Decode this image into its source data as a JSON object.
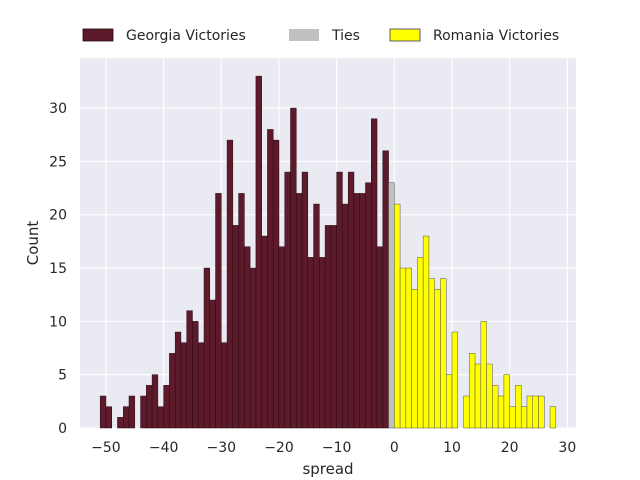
{
  "chart_data": {
    "type": "bar",
    "xlabel": "spread",
    "ylabel": "Count",
    "xlim": [
      -54.5,
      31.5
    ],
    "ylim": [
      0,
      34.7
    ],
    "xticks": [
      -50,
      -40,
      -30,
      -20,
      -10,
      0,
      10,
      20,
      30
    ],
    "yticks": [
      0,
      5,
      10,
      15,
      20,
      25,
      30
    ],
    "xtick_labels": [
      "−50",
      "−40",
      "−30",
      "−20",
      "−10",
      "0",
      "10",
      "20",
      "30"
    ],
    "ytick_labels": [
      "0",
      "5",
      "10",
      "15",
      "20",
      "25",
      "30"
    ],
    "legend_position": "top",
    "grid": true,
    "bin_width": 1,
    "series": [
      {
        "name": "Georgia Victories",
        "color": "#5c1a2b",
        "bins": [
          [
            -51,
            3
          ],
          [
            -50,
            2
          ],
          [
            -49,
            0
          ],
          [
            -48,
            1
          ],
          [
            -47,
            2
          ],
          [
            -46,
            3
          ],
          [
            -45,
            0
          ],
          [
            -44,
            3
          ],
          [
            -43,
            4
          ],
          [
            -42,
            5
          ],
          [
            -41,
            2
          ],
          [
            -40,
            4
          ],
          [
            -39,
            7
          ],
          [
            -38,
            9
          ],
          [
            -37,
            8
          ],
          [
            -36,
            11
          ],
          [
            -35,
            10
          ],
          [
            -34,
            8
          ],
          [
            -33,
            15
          ],
          [
            -32,
            12
          ],
          [
            -31,
            22
          ],
          [
            -30,
            8
          ],
          [
            -29,
            27
          ],
          [
            -28,
            19
          ],
          [
            -27,
            22
          ],
          [
            -26,
            17
          ],
          [
            -25,
            15
          ],
          [
            -24,
            33
          ],
          [
            -23,
            18
          ],
          [
            -22,
            28
          ],
          [
            -21,
            27
          ],
          [
            -20,
            17
          ],
          [
            -19,
            24
          ],
          [
            -18,
            30
          ],
          [
            -17,
            22
          ],
          [
            -16,
            24
          ],
          [
            -15,
            16
          ],
          [
            -14,
            21
          ],
          [
            -13,
            16
          ],
          [
            -12,
            19
          ],
          [
            -11,
            19
          ],
          [
            -10,
            24
          ],
          [
            -9,
            21
          ],
          [
            -8,
            24
          ],
          [
            -7,
            22
          ],
          [
            -6,
            22
          ],
          [
            -5,
            23
          ],
          [
            -4,
            29
          ],
          [
            -3,
            17
          ],
          [
            -2,
            26
          ]
        ]
      },
      {
        "name": "Ties",
        "color": "#c0c0c0",
        "bins": [
          [
            -1,
            23
          ]
        ]
      },
      {
        "name": "Romania Victories",
        "color": "#ffff00",
        "bins": [
          [
            0,
            21
          ],
          [
            1,
            15
          ],
          [
            2,
            15
          ],
          [
            3,
            13
          ],
          [
            4,
            16
          ],
          [
            5,
            18
          ],
          [
            6,
            14
          ],
          [
            7,
            13
          ],
          [
            8,
            14
          ],
          [
            9,
            5
          ],
          [
            10,
            9
          ],
          [
            11,
            0
          ],
          [
            12,
            3
          ],
          [
            13,
            7
          ],
          [
            14,
            6
          ],
          [
            15,
            10
          ],
          [
            16,
            6
          ],
          [
            17,
            4
          ],
          [
            18,
            3
          ],
          [
            19,
            5
          ],
          [
            20,
            2
          ],
          [
            21,
            4
          ],
          [
            22,
            2
          ],
          [
            23,
            3
          ],
          [
            24,
            3
          ],
          [
            25,
            3
          ],
          [
            26,
            0
          ],
          [
            27,
            2
          ]
        ]
      }
    ]
  }
}
